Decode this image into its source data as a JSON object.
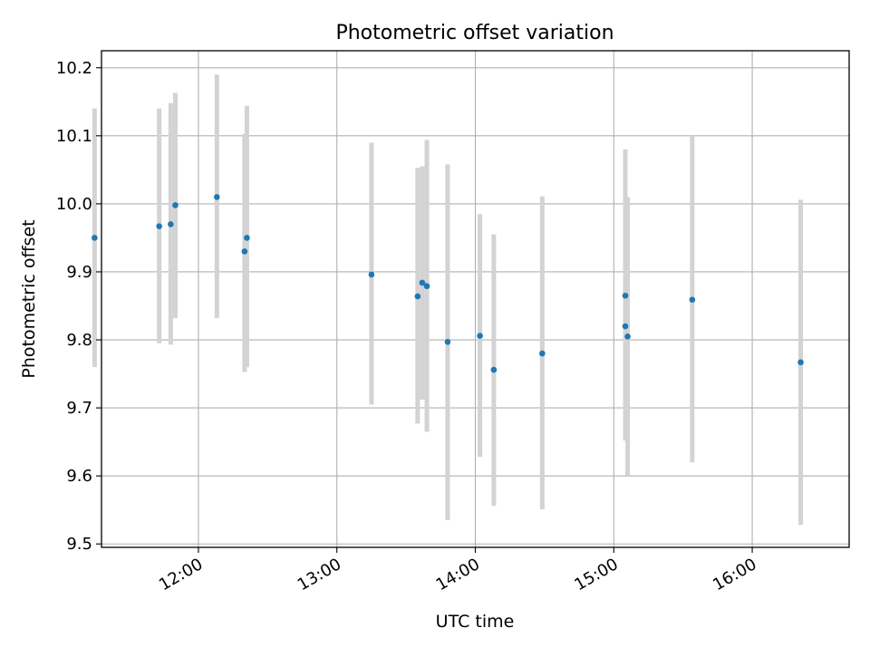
{
  "chart_data": {
    "type": "scatter",
    "title": "Photometric offset variation",
    "xlabel": "UTC time",
    "ylabel": "Photometric offset",
    "x_ticks": [
      "12:00",
      "13:00",
      "14:00",
      "15:00",
      "16:00"
    ],
    "y_ticks": [
      "9.5",
      "9.6",
      "9.7",
      "9.8",
      "9.9",
      "10.0",
      "10.1",
      "10.2"
    ],
    "xlim": [
      "11:18",
      "16:42"
    ],
    "ylim": [
      9.495,
      10.225
    ],
    "grid": true,
    "marker_color": "#1f77b4",
    "errorbar_color": "#d3d3d3",
    "points": [
      {
        "x": "11:15",
        "y": 9.95,
        "low": 9.76,
        "high": 10.14
      },
      {
        "x": "11:43",
        "y": 9.967,
        "low": 9.795,
        "high": 10.14
      },
      {
        "x": "11:48",
        "y": 9.97,
        "low": 9.793,
        "high": 10.148
      },
      {
        "x": "11:50",
        "y": 9.998,
        "low": 9.832,
        "high": 10.163
      },
      {
        "x": "12:08",
        "y": 10.01,
        "low": 9.832,
        "high": 10.19
      },
      {
        "x": "12:20",
        "y": 9.93,
        "low": 9.753,
        "high": 10.103
      },
      {
        "x": "12:21",
        "y": 9.95,
        "low": 9.76,
        "high": 10.144
      },
      {
        "x": "13:15",
        "y": 9.896,
        "low": 9.705,
        "high": 10.09
      },
      {
        "x": "13:35",
        "y": 9.864,
        "low": 9.677,
        "high": 10.053
      },
      {
        "x": "13:37",
        "y": 9.884,
        "low": 9.712,
        "high": 10.055
      },
      {
        "x": "13:39",
        "y": 9.879,
        "low": 9.665,
        "high": 10.094
      },
      {
        "x": "13:48",
        "y": 9.797,
        "low": 9.535,
        "high": 10.058
      },
      {
        "x": "14:02",
        "y": 9.806,
        "low": 9.628,
        "high": 9.985
      },
      {
        "x": "14:08",
        "y": 9.756,
        "low": 9.556,
        "high": 9.955
      },
      {
        "x": "14:29",
        "y": 9.78,
        "low": 9.551,
        "high": 10.011
      },
      {
        "x": "15:05",
        "y": 9.865,
        "low": 9.652,
        "high": 10.08
      },
      {
        "x": "15:05",
        "y": 9.82,
        "low": 9.652,
        "high": 9.99
      },
      {
        "x": "15:06",
        "y": 9.805,
        "low": 9.6,
        "high": 10.01
      },
      {
        "x": "15:34",
        "y": 9.859,
        "low": 9.62,
        "high": 10.1
      },
      {
        "x": "16:21",
        "y": 9.767,
        "low": 9.528,
        "high": 10.006
      }
    ]
  }
}
